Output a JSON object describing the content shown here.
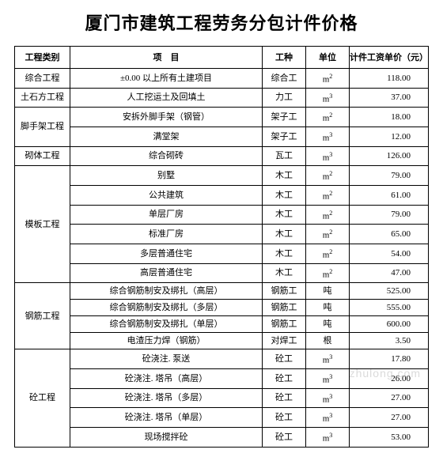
{
  "title": "厦门市建筑工程劳务分包计件价格",
  "headers": {
    "category": "工程类别",
    "item": "项　目",
    "work": "工种",
    "unit": "单位",
    "price": "计件工资单价（元）"
  },
  "groups": [
    {
      "category": "综合工程",
      "rows": [
        {
          "item": "±0.00 以上所有土建项目",
          "work": "综合工",
          "unit": "m²",
          "price": "118.00"
        }
      ]
    },
    {
      "category": "土石方工程",
      "rows": [
        {
          "item": "人工挖运土及回填土",
          "work": "力工",
          "unit": "m³",
          "price": "37.00"
        }
      ]
    },
    {
      "category": "脚手架工程",
      "rows": [
        {
          "item": "安拆外脚手架（钢管）",
          "work": "架子工",
          "unit": "m²",
          "price": "18.00"
        },
        {
          "item": "满堂架",
          "work": "架子工",
          "unit": "m³",
          "price": "12.00"
        }
      ]
    },
    {
      "category": "砌体工程",
      "rows": [
        {
          "item": "综合砌砖",
          "work": "瓦工",
          "unit": "m³",
          "price": "126.00"
        }
      ]
    },
    {
      "category": "模板工程",
      "rows": [
        {
          "item": "别墅",
          "work": "木工",
          "unit": "m²",
          "price": "79.00"
        },
        {
          "item": "公共建筑",
          "work": "木工",
          "unit": "m²",
          "price": "61.00"
        },
        {
          "item": "单层厂房",
          "work": "木工",
          "unit": "m²",
          "price": "79.00"
        },
        {
          "item": "标准厂房",
          "work": "木工",
          "unit": "m²",
          "price": "65.00"
        },
        {
          "item": "多层普通住宅",
          "work": "木工",
          "unit": "m²",
          "price": "54.00"
        },
        {
          "item": "高层普通住宅",
          "work": "木工",
          "unit": "m²",
          "price": "47.00"
        }
      ]
    },
    {
      "category": "钢筋工程",
      "rows": [
        {
          "item": "综合钢筋制安及绑扎（高层）",
          "work": "钢筋工",
          "unit": "吨",
          "price": "525.00"
        },
        {
          "item": "综合钢筋制安及绑扎（多层）",
          "work": "钢筋工",
          "unit": "吨",
          "price": "555.00"
        },
        {
          "item": "综合钢筋制安及绑扎（单层）",
          "work": "钢筋工",
          "unit": "吨",
          "price": "600.00"
        },
        {
          "item": "电渣压力焊（钢筋）",
          "work": "对焊工",
          "unit": "根",
          "price": "3.50"
        }
      ]
    },
    {
      "category": "砼工程",
      "rows": [
        {
          "item": "砼浇注. 泵送",
          "work": "砼工",
          "unit": "m³",
          "price": "17.80"
        },
        {
          "item": "砼浇注. 塔吊（高层）",
          "work": "砼工",
          "unit": "m³",
          "price": "26.00"
        },
        {
          "item": "砼浇注. 塔吊（多层）",
          "work": "砼工",
          "unit": "m³",
          "price": "27.00"
        },
        {
          "item": "砼浇注. 塔吊（单层）",
          "work": "砼工",
          "unit": "m³",
          "price": "27.00"
        },
        {
          "item": "现场搅拌砼",
          "work": "砼工",
          "unit": "m³",
          "price": "53.00"
        }
      ]
    }
  ],
  "watermark": "zhulong.com"
}
